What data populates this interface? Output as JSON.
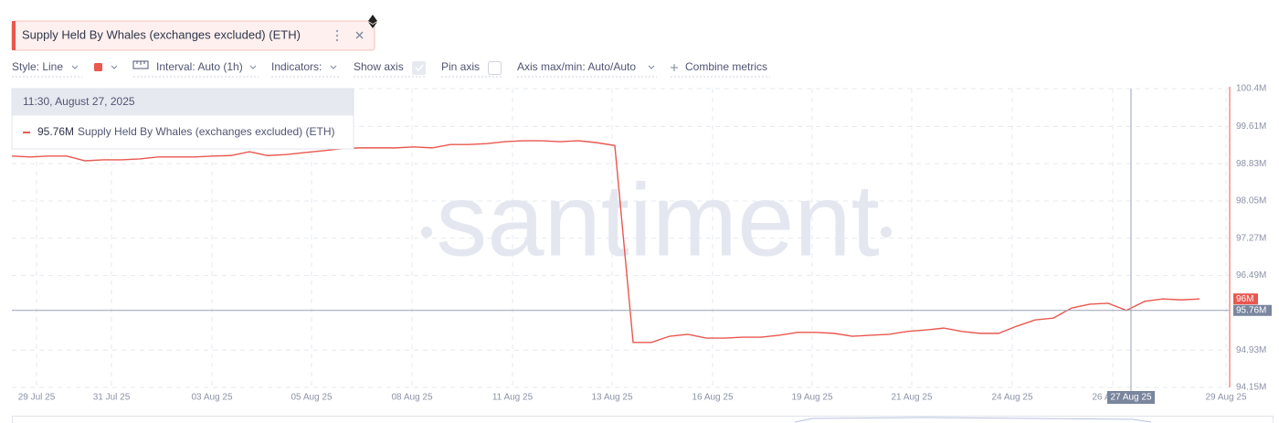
{
  "toolbar": {
    "style": "Style: Line",
    "interval": "Interval: Auto (1h)",
    "indicators": "Indicators:",
    "show_axis": "Show axis",
    "pin_axis": "Pin axis",
    "axis_minmax": "Axis max/min: Auto/Auto",
    "combine": "Combine metrics"
  },
  "tooltip": {
    "date": "11:30, August 27, 2025"
  },
  "watermark": "santiment",
  "chart_data": {
    "type": "line",
    "series": [
      {
        "name": "Supply Held By Whales (exchanges excluded) (ETH)",
        "color": "#e9574f",
        "values": [
          98.99,
          98.97,
          98.99,
          98.99,
          98.89,
          98.91,
          98.91,
          98.93,
          98.97,
          98.97,
          98.97,
          98.99,
          99.0,
          99.08,
          99.0,
          99.02,
          99.06,
          99.1,
          99.14,
          99.16,
          99.16,
          99.16,
          99.18,
          99.16,
          99.23,
          99.23,
          99.25,
          99.29,
          99.31,
          99.31,
          99.29,
          99.31,
          99.27,
          99.21,
          95.09,
          95.09,
          95.22,
          95.26,
          95.18,
          95.18,
          95.2,
          95.2,
          95.24,
          95.3,
          95.3,
          95.28,
          95.22,
          95.24,
          95.26,
          95.32,
          95.35,
          95.39,
          95.32,
          95.28,
          95.28,
          95.43,
          95.56,
          95.6,
          95.81,
          95.89,
          95.91,
          95.76,
          95.95,
          96.0,
          95.98,
          96.0
        ]
      }
    ],
    "xtick_labels": [
      "29 Jul 25",
      "31 Jul 25",
      "03 Aug 25",
      "05 Aug 25",
      "08 Aug 25",
      "11 Aug 25",
      "13 Aug 25",
      "16 Aug 25",
      "19 Aug 25",
      "21 Aug 25",
      "24 Aug 25",
      "26 Aug 25",
      "29 Aug 25"
    ],
    "ylim": [
      94.15,
      100.4
    ],
    "yticks": [
      {
        "value": 94.15,
        "label": "94.15M"
      },
      {
        "value": 94.93,
        "label": "94.93M"
      },
      {
        "value": 96.49,
        "label": "96.49M"
      },
      {
        "value": 97.27,
        "label": "97.27M"
      },
      {
        "value": 98.05,
        "label": "98.05M"
      },
      {
        "value": 98.83,
        "label": "98.83M"
      },
      {
        "value": 99.61,
        "label": "99.61M"
      },
      {
        "value": 100.4,
        "label": "100.4M"
      }
    ],
    "last_value": {
      "value": 96,
      "label": "96M"
    },
    "crosshair": {
      "value": 95.76,
      "label": "95.76M",
      "date": "27 Aug 25"
    },
    "grid": true
  }
}
